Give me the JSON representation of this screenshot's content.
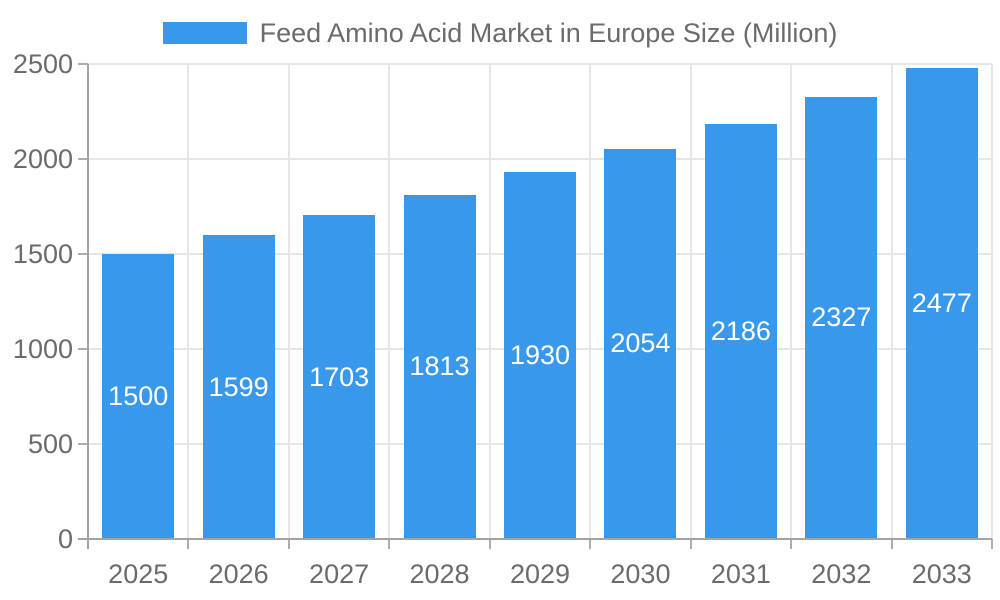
{
  "chart_data": {
    "type": "bar",
    "legend": {
      "label": "Feed Amino Acid Market in Europe Size (Million)",
      "position": "top"
    },
    "categories": [
      "2025",
      "2026",
      "2027",
      "2028",
      "2029",
      "2030",
      "2031",
      "2032",
      "2033"
    ],
    "series": [
      {
        "name": "Feed Amino Acid Market in Europe Size (Million)",
        "values": [
          1500,
          1599,
          1703,
          1813,
          1930,
          2054,
          2186,
          2327,
          2477
        ]
      }
    ],
    "bar_value_labels": [
      "1500",
      "1599",
      "1703",
      "1813",
      "1930",
      "2054",
      "2186",
      "2327",
      "2477"
    ],
    "ylim": [
      0,
      2500
    ],
    "yticks": [
      0,
      500,
      1000,
      1500,
      2000,
      2500
    ],
    "grid": true,
    "colors": {
      "bar": "#3899EC",
      "bar_label_text": "#FFFFFF",
      "grid_line": "#E6E6E6",
      "axis_line": "#A3A3A3",
      "tick_mark": "#ADADAD",
      "axis_text": "#6B6B6B",
      "legend_text": "#6B6B6B",
      "background": "#FFFFFF"
    }
  }
}
